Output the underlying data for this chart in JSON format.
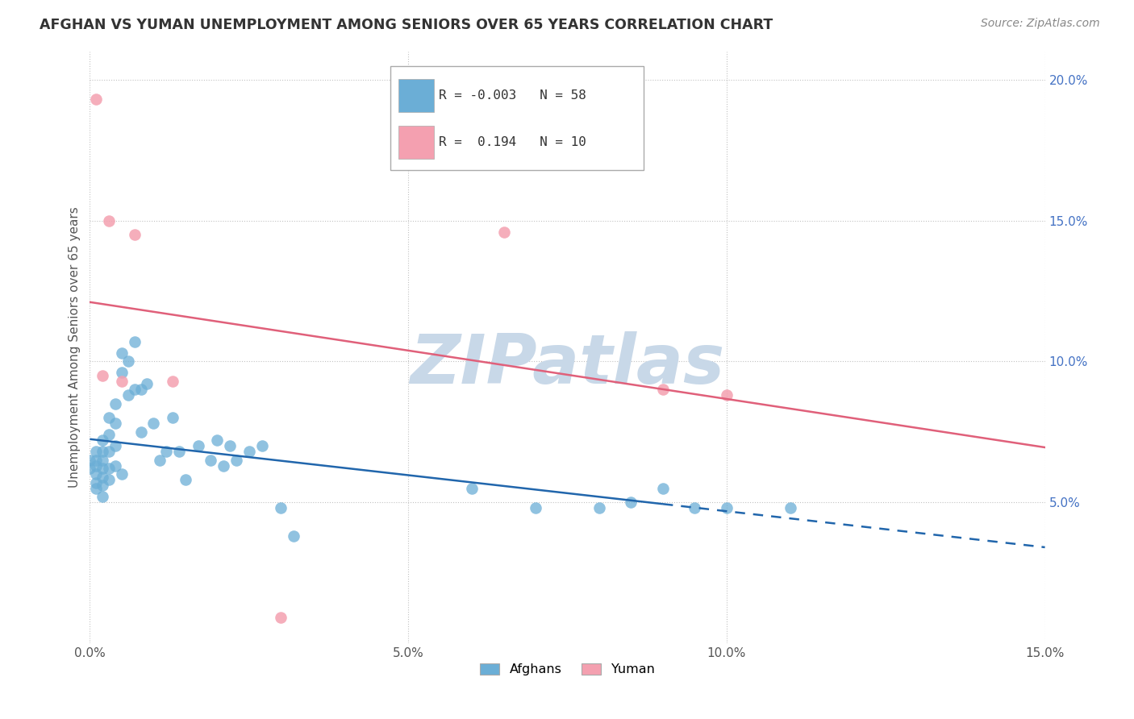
{
  "title": "AFGHAN VS YUMAN UNEMPLOYMENT AMONG SENIORS OVER 65 YEARS CORRELATION CHART",
  "source": "Source: ZipAtlas.com",
  "ylabel_label": "Unemployment Among Seniors over 65 years",
  "xlim": [
    0.0,
    0.15
  ],
  "ylim": [
    0.0,
    0.21
  ],
  "legend_afghans": "Afghans",
  "legend_yuman": "Yuman",
  "color_afghan": "#6baed6",
  "color_yuman": "#f4a0b0",
  "color_trendline_afghan": "#2166ac",
  "color_trendline_yuman": "#e0607a",
  "background_color": "#ffffff",
  "watermark_color": "#c8d8e8",
  "grid_color": "#bbbbbb",
  "ytick_color": "#4472c4",
  "afghans_x": [
    0.0,
    0.0,
    0.001,
    0.001,
    0.001,
    0.001,
    0.001,
    0.001,
    0.002,
    0.002,
    0.002,
    0.002,
    0.002,
    0.002,
    0.002,
    0.003,
    0.003,
    0.003,
    0.003,
    0.003,
    0.004,
    0.004,
    0.004,
    0.004,
    0.005,
    0.005,
    0.005,
    0.006,
    0.006,
    0.007,
    0.007,
    0.008,
    0.008,
    0.009,
    0.01,
    0.011,
    0.012,
    0.013,
    0.014,
    0.015,
    0.017,
    0.019,
    0.02,
    0.021,
    0.022,
    0.023,
    0.025,
    0.027,
    0.03,
    0.032,
    0.06,
    0.07,
    0.08,
    0.085,
    0.09,
    0.095,
    0.1,
    0.11
  ],
  "afghans_y": [
    0.065,
    0.062,
    0.068,
    0.065,
    0.063,
    0.06,
    0.057,
    0.055,
    0.072,
    0.068,
    0.065,
    0.062,
    0.059,
    0.056,
    0.052,
    0.08,
    0.074,
    0.068,
    0.062,
    0.058,
    0.085,
    0.078,
    0.07,
    0.063,
    0.103,
    0.096,
    0.06,
    0.1,
    0.088,
    0.107,
    0.09,
    0.09,
    0.075,
    0.092,
    0.078,
    0.065,
    0.068,
    0.08,
    0.068,
    0.058,
    0.07,
    0.065,
    0.072,
    0.063,
    0.07,
    0.065,
    0.068,
    0.07,
    0.048,
    0.038,
    0.055,
    0.048,
    0.048,
    0.05,
    0.055,
    0.048,
    0.048,
    0.048
  ],
  "yuman_x": [
    0.001,
    0.002,
    0.003,
    0.005,
    0.007,
    0.013,
    0.03,
    0.065,
    0.09,
    0.1
  ],
  "yuman_y": [
    0.193,
    0.095,
    0.15,
    0.093,
    0.145,
    0.093,
    0.009,
    0.146,
    0.09,
    0.088
  ]
}
